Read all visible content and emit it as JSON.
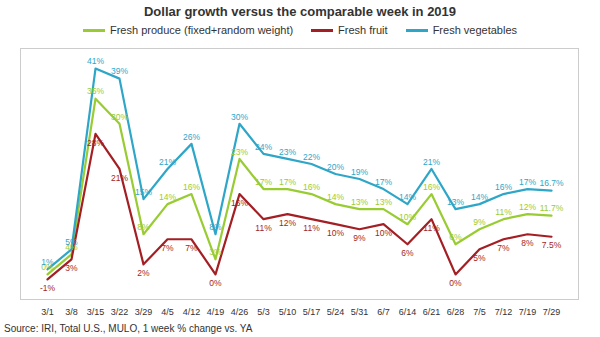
{
  "chart_data": {
    "type": "line",
    "title": "Dollar growth versus the comparable week in 2019",
    "caption": "Source: IRI, Total U.S., MULO, 1 week % change vs. YA",
    "categories": [
      "3/1",
      "3/8",
      "3/15",
      "3/22",
      "3/29",
      "4/5",
      "4/12",
      "4/19",
      "4/26",
      "5/3",
      "5/10",
      "5/17",
      "5/24",
      "5/31",
      "6/7",
      "6/14",
      "6/21",
      "6/28",
      "7/5",
      "7/12",
      "7/19",
      "7/29"
    ],
    "series": [
      {
        "name": "Fresh produce (fixed+random weight)",
        "color": "#99cc33",
        "values": [
          0,
          4,
          35,
          30,
          8,
          14,
          16,
          3,
          23,
          17,
          17,
          16,
          14,
          13,
          13,
          10,
          16,
          6,
          9,
          11,
          12,
          11.7
        ],
        "value_labels": [
          "0%",
          "4%",
          "35%",
          "30%",
          "8%",
          "14%",
          "16%",
          "3%",
          "23%",
          "17%",
          "17%",
          "16%",
          "14%",
          "13%",
          "13%",
          "10%",
          "16%",
          "6%",
          "9%",
          "11%",
          "12%",
          "11.7%"
        ]
      },
      {
        "name": "Fresh fruit",
        "color": "#a31f24",
        "values": [
          -1,
          3,
          28,
          21,
          2,
          7,
          7,
          0,
          16,
          11,
          12,
          11,
          10,
          9,
          10,
          6,
          11,
          0,
          5,
          7,
          8,
          7.5
        ],
        "value_labels": [
          "-1%",
          "3%",
          "28%",
          "21%",
          "2%",
          "7%",
          "7%",
          "0%",
          "16%",
          "11%",
          "12%",
          "11%",
          "10%",
          "9%",
          "10%",
          "6%",
          "11%",
          "0%",
          "5%",
          "7%",
          "8%",
          "7.5%"
        ]
      },
      {
        "name": "Fresh vegetables",
        "color": "#2ea6c8",
        "values": [
          1,
          5,
          41,
          39,
          15,
          21,
          26,
          8,
          30,
          24,
          23,
          22,
          20,
          19,
          17,
          14,
          21,
          13,
          14,
          16,
          17,
          16.7
        ],
        "value_labels": [
          "1%",
          "5%",
          "41%",
          "39%",
          "15%",
          "21%",
          "26%",
          "8%",
          "30%",
          "24%",
          "23%",
          "22%",
          "20%",
          "19%",
          "17%",
          "14%",
          "21%",
          "13%",
          "14%",
          "16%",
          "17%",
          "16.7%"
        ]
      }
    ],
    "ylim": [
      -5,
      45
    ],
    "tick_labels": "x",
    "data_labels": true,
    "legend": "top",
    "grid": false
  }
}
